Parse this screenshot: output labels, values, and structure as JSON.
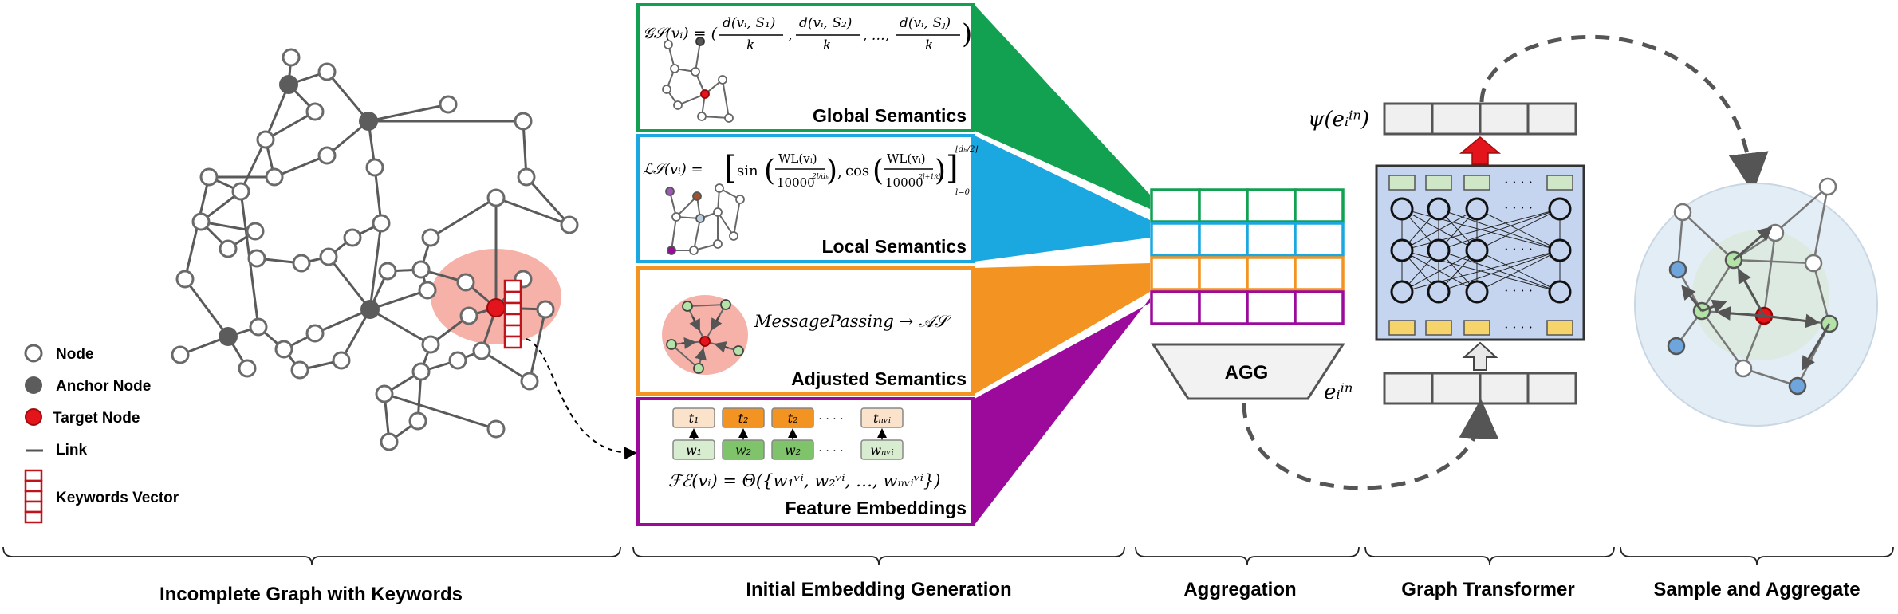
{
  "legend": {
    "node": "Node",
    "anchor_node": "Anchor Node",
    "target_node": "Target Node",
    "link": "Link",
    "keywords_vector": "Keywords Vector"
  },
  "panels": {
    "global": {
      "title": "Global Semantics",
      "formula_lhs": "𝒢𝒮(vᵢ) = (",
      "formula_terms": [
        "d(vᵢ, S₁)",
        "d(vᵢ, S₂)",
        "d(vᵢ, Sⱼ)"
      ],
      "formula_den": "k",
      "formula_sep": ", …, ",
      "color": "#12a150"
    },
    "local": {
      "title": "Local Semantics",
      "formula_lhs": "ℒ𝒮(vᵢ) =",
      "formula_sin": "sin",
      "formula_cos": "cos",
      "formula_num": "WL(vᵢ)",
      "formula_den": "10000",
      "formula_exp1": "2l/dₕ",
      "formula_exp2": "2l+1/dₕ",
      "formula_upper": "⌊dₕ/2⌋",
      "formula_lower": "l=0",
      "color": "#1ba7e0"
    },
    "adjusted": {
      "title": "Adjusted Semantics",
      "formula": "MessagePassing → 𝒜𝒮",
      "color": "#f39321"
    },
    "feature": {
      "title": "Feature Embeddings",
      "tokens_t": [
        "t₁",
        "t₂",
        "t₂",
        "tₙᵥᵢ"
      ],
      "tokens_w": [
        "w₁",
        "w₂",
        "w₂",
        "wₙᵥᵢ"
      ],
      "dots": "· · · ·",
      "formula": "ℱℰ(vᵢ) = Θ({w₁ᵛⁱ, w₂ᵛⁱ, …, wₙᵥᵢᵛⁱ})",
      "color": "#9b0a9b"
    }
  },
  "aggregation": {
    "agg_label": "AGG"
  },
  "transformer": {
    "psi_label": "ψ(eᵢⁱⁿ)",
    "e_label": "eᵢⁱⁿ",
    "dots": "· · · ·"
  },
  "sections": [
    "Incomplete Graph with Keywords",
    "Initial Embedding Generation",
    "Aggregation",
    "Graph Transformer",
    "Sample and Aggregate"
  ]
}
